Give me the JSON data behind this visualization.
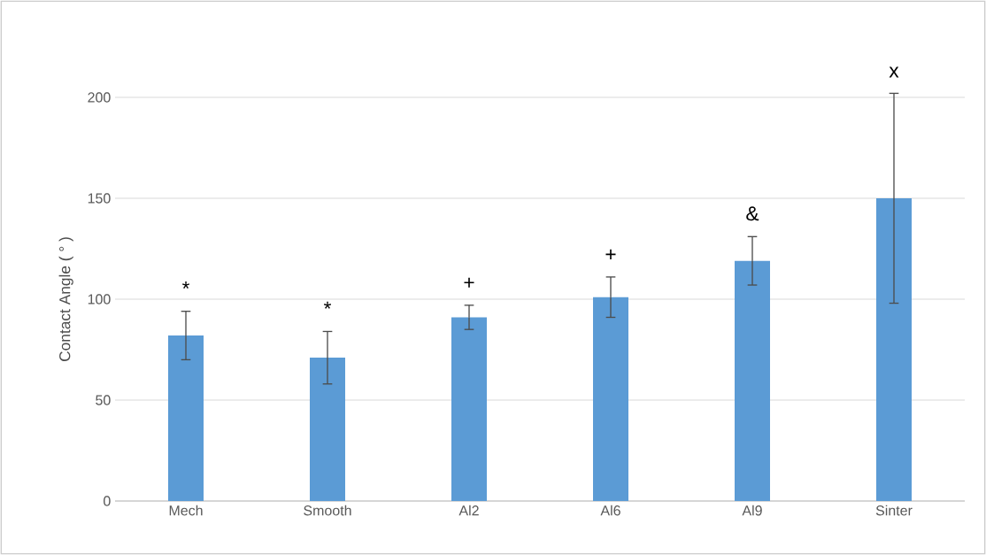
{
  "chart_data": {
    "type": "bar",
    "ylabel": "Contact Angle ( ° )",
    "categories": [
      "Mech",
      "Smooth",
      "Al2",
      "Al6",
      "Al9",
      "Sinter"
    ],
    "values": [
      82,
      71,
      91,
      101,
      119,
      150
    ],
    "errors": [
      12,
      13,
      6,
      10,
      12,
      52
    ],
    "color": "#5b9bd5",
    "ylim": [
      0,
      200
    ],
    "yticks": [
      0,
      50,
      100,
      150,
      200
    ],
    "grid": "y",
    "annotations": [
      "*",
      "*",
      "+",
      "+",
      "&",
      "x"
    ]
  }
}
